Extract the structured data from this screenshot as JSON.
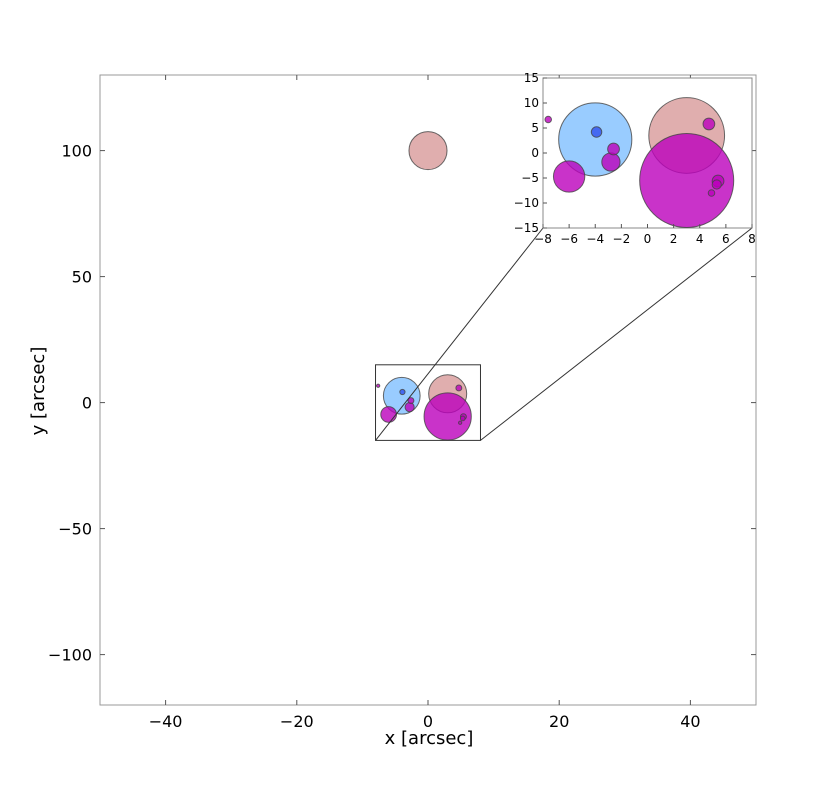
{
  "chart_data": [
    {
      "type": "scatter",
      "title": "",
      "xlabel": "x [arcsec]",
      "ylabel": "y [arcsec]",
      "xlim": [
        -50,
        50
      ],
      "ylim": [
        -120,
        130
      ],
      "xticks": [
        -40,
        -20,
        0,
        20,
        40
      ],
      "yticks": [
        -100,
        -50,
        0,
        50,
        100
      ],
      "grid": false,
      "legend": "none",
      "series": [
        {
          "color": "#d89a9a",
          "points": [
            {
              "x": 0,
              "y": 100,
              "r": 2.9
            },
            {
              "x": 3,
              "y": 3.5,
              "r": 2.9
            }
          ]
        },
        {
          "color": "#80bfff",
          "points": [
            {
              "x": -4,
              "y": 2.7,
              "r": 2.8
            }
          ]
        },
        {
          "color": "#bb00bb",
          "points": [
            {
              "x": 3,
              "y": -5.5,
              "r": 3.6
            },
            {
              "x": -6,
              "y": -4.7,
              "r": 1.2
            },
            {
              "x": -2.8,
              "y": -1.8,
              "r": 0.7
            },
            {
              "x": -2.6,
              "y": 0.8,
              "r": 0.45
            },
            {
              "x": 4.7,
              "y": 5.8,
              "r": 0.45
            },
            {
              "x": 5.4,
              "y": -5.6,
              "r": 0.45
            },
            {
              "x": 5.3,
              "y": -6.3,
              "r": 0.35
            },
            {
              "x": 4.9,
              "y": -8,
              "r": 0.25
            },
            {
              "x": -7.6,
              "y": 6.7,
              "r": 0.25
            }
          ]
        },
        {
          "color": "#3050ee",
          "points": [
            {
              "x": -3.9,
              "y": 4.2,
              "r": 0.4
            }
          ]
        }
      ]
    },
    {
      "type": "scatter",
      "title": "",
      "xlabel": "",
      "ylabel": "",
      "xlim": [
        -8,
        8
      ],
      "ylim": [
        -15,
        15
      ],
      "xticks": [
        -8,
        -6,
        -4,
        -2,
        0,
        2,
        4,
        6,
        8
      ],
      "yticks": [
        -15,
        -10,
        -5,
        0,
        5,
        10,
        15
      ],
      "grid": false,
      "legend": "none"
    }
  ]
}
